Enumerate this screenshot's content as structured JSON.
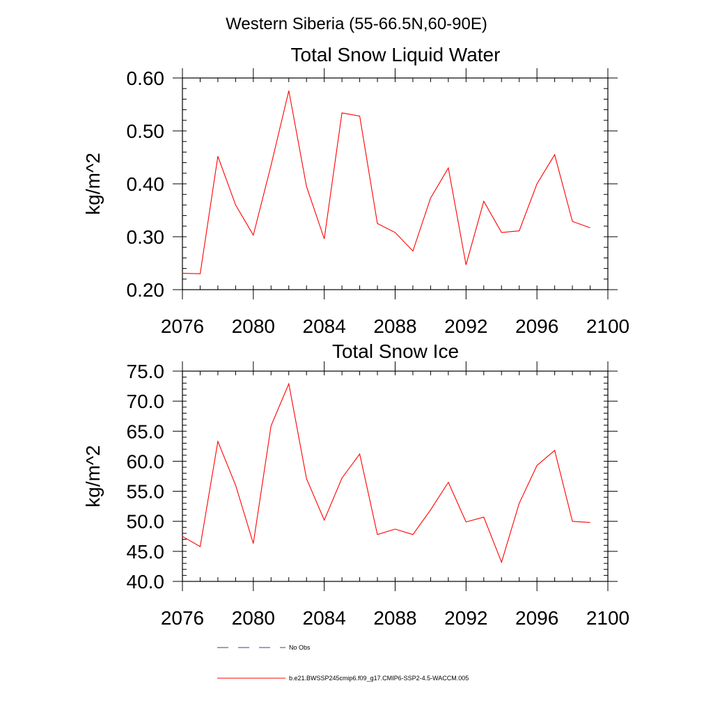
{
  "figure": {
    "title": "Western Siberia (55-66.5N,60-90E)"
  },
  "legend": {
    "placement": "bottom",
    "items": [
      {
        "label": "No Obs",
        "color": "#3c3c8c",
        "style": "dashed"
      },
      {
        "label": "b.e21.BWSSP245cmip6.f09_g17.CMIP6-SSP2-4.5-WACCM.005",
        "color": "#ff0000",
        "style": "solid"
      }
    ]
  },
  "chart_data": [
    {
      "type": "line",
      "title": "Total Snow Liquid Water",
      "xlabel": "",
      "ylabel": "kg/m^2",
      "xlim": [
        2076,
        2100
      ],
      "ylim": [
        0.2,
        0.6
      ],
      "xticks": [
        "2076",
        "2080",
        "2084",
        "2088",
        "2092",
        "2096",
        "2100"
      ],
      "yticks": [
        "0.20",
        "0.30",
        "0.40",
        "0.50",
        "0.60"
      ],
      "grid": false,
      "series": [
        {
          "name": "b.e21.BWSSP245cmip6.f09_g17.CMIP6-SSP2-4.5-WACCM.005",
          "color": "#ff0000",
          "x": [
            2076,
            2077,
            2078,
            2079,
            2080,
            2081,
            2082,
            2083,
            2084,
            2085,
            2086,
            2087,
            2088,
            2089,
            2090,
            2091,
            2092,
            2093,
            2094,
            2095,
            2096,
            2097,
            2098,
            2099
          ],
          "values": [
            0.231,
            0.23,
            0.452,
            0.36,
            0.303,
            0.435,
            0.576,
            0.395,
            0.296,
            0.534,
            0.528,
            0.325,
            0.308,
            0.273,
            0.373,
            0.43,
            0.247,
            0.367,
            0.308,
            0.311,
            0.4,
            0.455,
            0.329,
            0.317
          ]
        }
      ]
    },
    {
      "type": "line",
      "title": "Total Snow Ice",
      "xlabel": "",
      "ylabel": "kg/m^2",
      "xlim": [
        2076,
        2100
      ],
      "ylim": [
        40,
        75
      ],
      "xticks": [
        "2076",
        "2080",
        "2084",
        "2088",
        "2092",
        "2096",
        "2100"
      ],
      "yticks": [
        "40.0",
        "45.0",
        "50.0",
        "55.0",
        "60.0",
        "65.0",
        "70.0",
        "75.0"
      ],
      "grid": false,
      "series": [
        {
          "name": "b.e21.BWSSP245cmip6.f09_g17.CMIP6-SSP2-4.5-WACCM.005",
          "color": "#ff0000",
          "x": [
            2076,
            2077,
            2078,
            2079,
            2080,
            2081,
            2082,
            2083,
            2084,
            2085,
            2086,
            2087,
            2088,
            2089,
            2090,
            2091,
            2092,
            2093,
            2094,
            2095,
            2096,
            2097,
            2098,
            2099
          ],
          "values": [
            47.5,
            45.8,
            63.3,
            56.0,
            46.3,
            65.9,
            72.9,
            57.1,
            50.2,
            57.2,
            61.2,
            47.8,
            48.7,
            47.8,
            51.9,
            56.5,
            49.9,
            50.7,
            43.2,
            53.0,
            59.3,
            61.8,
            50.0,
            49.8
          ]
        }
      ]
    }
  ]
}
